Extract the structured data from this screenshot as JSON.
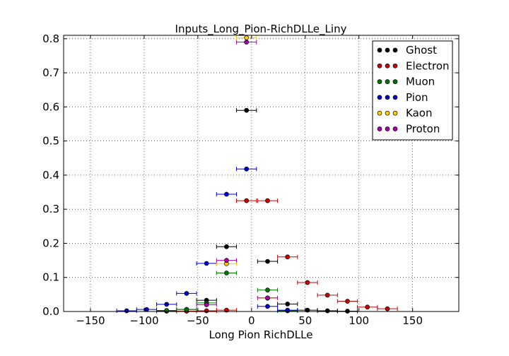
{
  "chart_data": {
    "type": "scatter",
    "title": "Inputs_Long_Pion-RichDLLe_Liny",
    "xlabel": "Long Pion RichDLLe",
    "ylabel": "",
    "xlim": [
      -175,
      193
    ],
    "ylim": [
      0,
      0.81
    ],
    "xticks": [
      -150,
      -100,
      -50,
      0,
      50,
      100,
      150
    ],
    "xtick_labels": [
      "−150",
      "−100",
      "−50",
      "0",
      "50",
      "100",
      "150"
    ],
    "yticks": [
      0.0,
      0.1,
      0.2,
      0.3,
      0.4,
      0.5,
      0.6,
      0.7,
      0.8
    ],
    "ytick_labels": [
      "0.0",
      "0.1",
      "0.2",
      "0.3",
      "0.4",
      "0.5",
      "0.6",
      "0.7",
      "0.8"
    ],
    "grid": true,
    "legend_position": "top-right",
    "xerr_halfwidth": 9.3,
    "series": [
      {
        "name": "Ghost",
        "color": "#000000",
        "x": [
          -4.7,
          -23.3,
          14.9,
          33.5,
          -41.9,
          52.1,
          -60.5,
          70.7,
          -79.1,
          89.3
        ],
        "y": [
          0.59,
          0.19,
          0.147,
          0.022,
          0.033,
          0.004,
          0.006,
          0.002,
          0.001,
          0.001
        ]
      },
      {
        "name": "Electron",
        "color": "#cc0000",
        "x": [
          -4.7,
          14.9,
          33.5,
          52.1,
          70.7,
          89.3,
          107.9,
          126.5,
          -23.3,
          -41.9,
          -60.5
        ],
        "y": [
          0.325,
          0.325,
          0.16,
          0.085,
          0.048,
          0.03,
          0.013,
          0.008,
          0.004,
          0.002,
          0.001
        ]
      },
      {
        "name": "Muon",
        "color": "#007700",
        "x": [
          -23.3,
          14.9,
          -41.9,
          -60.5,
          -79.1,
          33.5
        ],
        "y": [
          0.113,
          0.063,
          0.025,
          0.006,
          0.003,
          0.002
        ]
      },
      {
        "name": "Pion",
        "color": "#0000cc",
        "x": [
          -4.7,
          -23.3,
          -41.9,
          -60.5,
          -79.1,
          -97.7,
          -116.3,
          14.9,
          33.5
        ],
        "y": [
          0.418,
          0.344,
          0.141,
          0.053,
          0.021,
          0.006,
          0.002,
          0.015,
          0.004
        ]
      },
      {
        "name": "Kaon",
        "color": "#ffcc00",
        "x": [
          -4.7,
          -23.3,
          14.9
        ],
        "y": [
          0.803,
          0.14,
          0.039
        ]
      },
      {
        "name": "Proton",
        "color": "#aa00aa",
        "x": [
          -4.7,
          -23.3,
          14.9,
          -41.9
        ],
        "y": [
          0.79,
          0.15,
          0.04,
          0.02
        ]
      }
    ]
  }
}
